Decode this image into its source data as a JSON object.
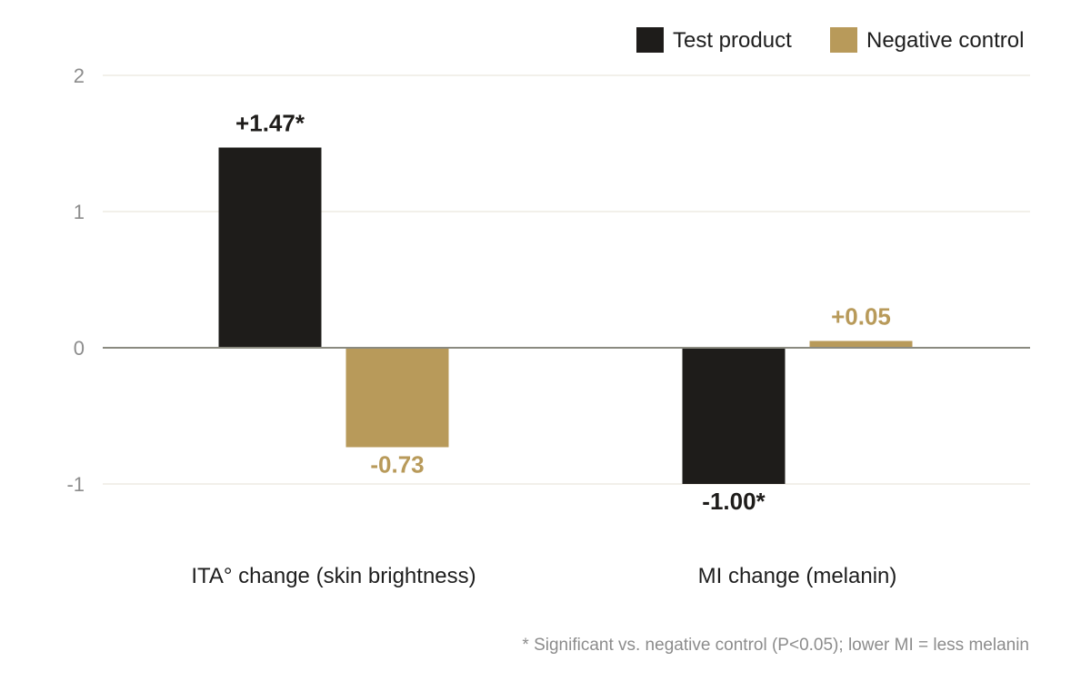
{
  "chart_data": {
    "type": "bar",
    "categories": [
      "ITA° change (skin brightness)",
      "MI change (melanin)"
    ],
    "series": [
      {
        "name": "Test product",
        "values": [
          1.47,
          -1.0
        ],
        "labels": [
          "+1.47*",
          "-1.00*"
        ],
        "color": "#1e1c1a"
      },
      {
        "name": "Negative control",
        "values": [
          -0.73,
          0.05
        ],
        "labels": [
          "-0.73",
          "+0.05"
        ],
        "color": "#b89a5a"
      }
    ],
    "ylim": [
      -1,
      2
    ],
    "yticks": [
      2,
      1,
      0,
      -1
    ],
    "ytick_labels": [
      "2",
      "1",
      "0",
      "-1"
    ],
    "grid": true,
    "legend_position": "top-right",
    "footnote": "* Significant vs. negative control (P<0.05); lower MI = less melanin"
  }
}
